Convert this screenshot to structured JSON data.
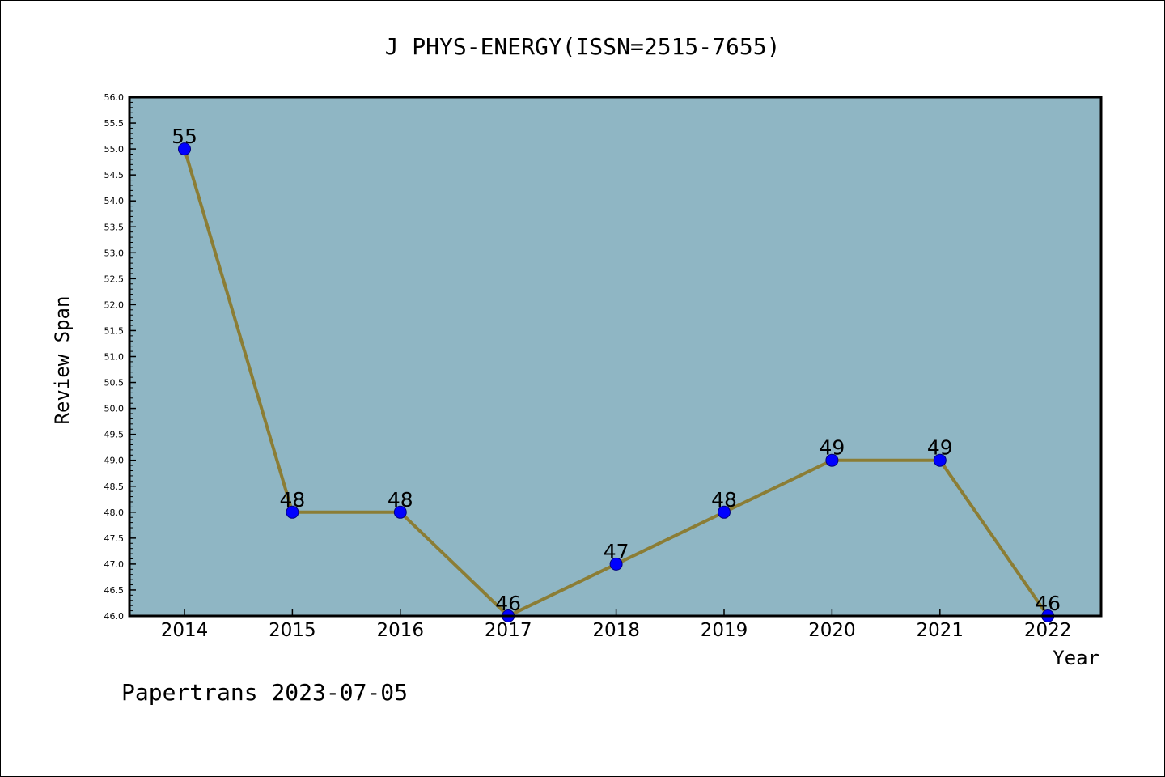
{
  "colors": {
    "plot_background": "#8fb6c4",
    "line": "#8b7d35",
    "marker_fill": "#0000ff",
    "marker_edge": "#000080",
    "frame": "#000000"
  },
  "footer": {
    "text": "Papertrans 2023-07-05"
  },
  "chart_data": {
    "type": "line",
    "title": "J PHYS-ENERGY(ISSN=2515-7655)",
    "xlabel": "Year",
    "ylabel": "Review Span",
    "categories": [
      "2014",
      "2015",
      "2016",
      "2017",
      "2018",
      "2019",
      "2020",
      "2021",
      "2022"
    ],
    "series": [
      {
        "values": [
          55,
          48,
          48,
          46,
          47,
          48,
          49,
          49,
          46
        ]
      }
    ],
    "data_labels": [
      "55",
      "48",
      "48",
      "46",
      "47",
      "48",
      "49",
      "49",
      "46"
    ],
    "ylim": [
      46.0,
      56.0
    ],
    "yticks": [
      "46.0",
      "46.5",
      "47.0",
      "47.5",
      "48.0",
      "48.5",
      "49.0",
      "49.5",
      "50.0",
      "50.5",
      "51.0",
      "51.5",
      "52.0",
      "52.5",
      "53.0",
      "53.5",
      "54.0",
      "54.5",
      "55.0",
      "55.5",
      "56.0"
    ],
    "grid": false,
    "legend": "none"
  }
}
